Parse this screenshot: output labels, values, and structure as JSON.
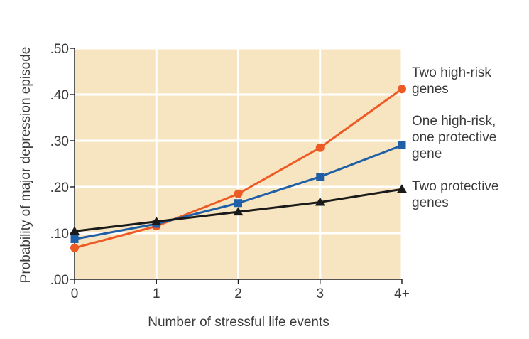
{
  "chart_data": {
    "type": "line",
    "title": "",
    "xlabel": "Number of stressful life events",
    "ylabel": "Probability of major depression episode",
    "categories": [
      "0",
      "1",
      "2",
      "3",
      "4+"
    ],
    "x": [
      0,
      1,
      2,
      3,
      4
    ],
    "y_ticks": [
      ".00",
      ".10",
      ".20",
      ".30",
      ".40",
      ".50"
    ],
    "ylim": [
      0,
      0.5
    ],
    "xlim": [
      0,
      4
    ],
    "grid": true,
    "background_color": "#f7e4c0",
    "series": [
      {
        "name": "Two high-risk genes",
        "label_lines": [
          "Two high-risk",
          "genes"
        ],
        "color": "#ee5a24",
        "marker": "circle",
        "values": [
          0.068,
          0.115,
          0.185,
          0.285,
          0.412
        ]
      },
      {
        "name": "One high-risk, one protective gene",
        "label_lines": [
          "One high-risk,",
          "one protective",
          "gene"
        ],
        "color": "#1f5fa8",
        "marker": "square",
        "values": [
          0.087,
          0.12,
          0.165,
          0.222,
          0.29
        ]
      },
      {
        "name": "Two protective genes",
        "label_lines": [
          "Two protective",
          "genes"
        ],
        "color": "#1a1a1a",
        "marker": "triangle",
        "values": [
          0.104,
          0.125,
          0.146,
          0.167,
          0.195
        ]
      }
    ]
  }
}
